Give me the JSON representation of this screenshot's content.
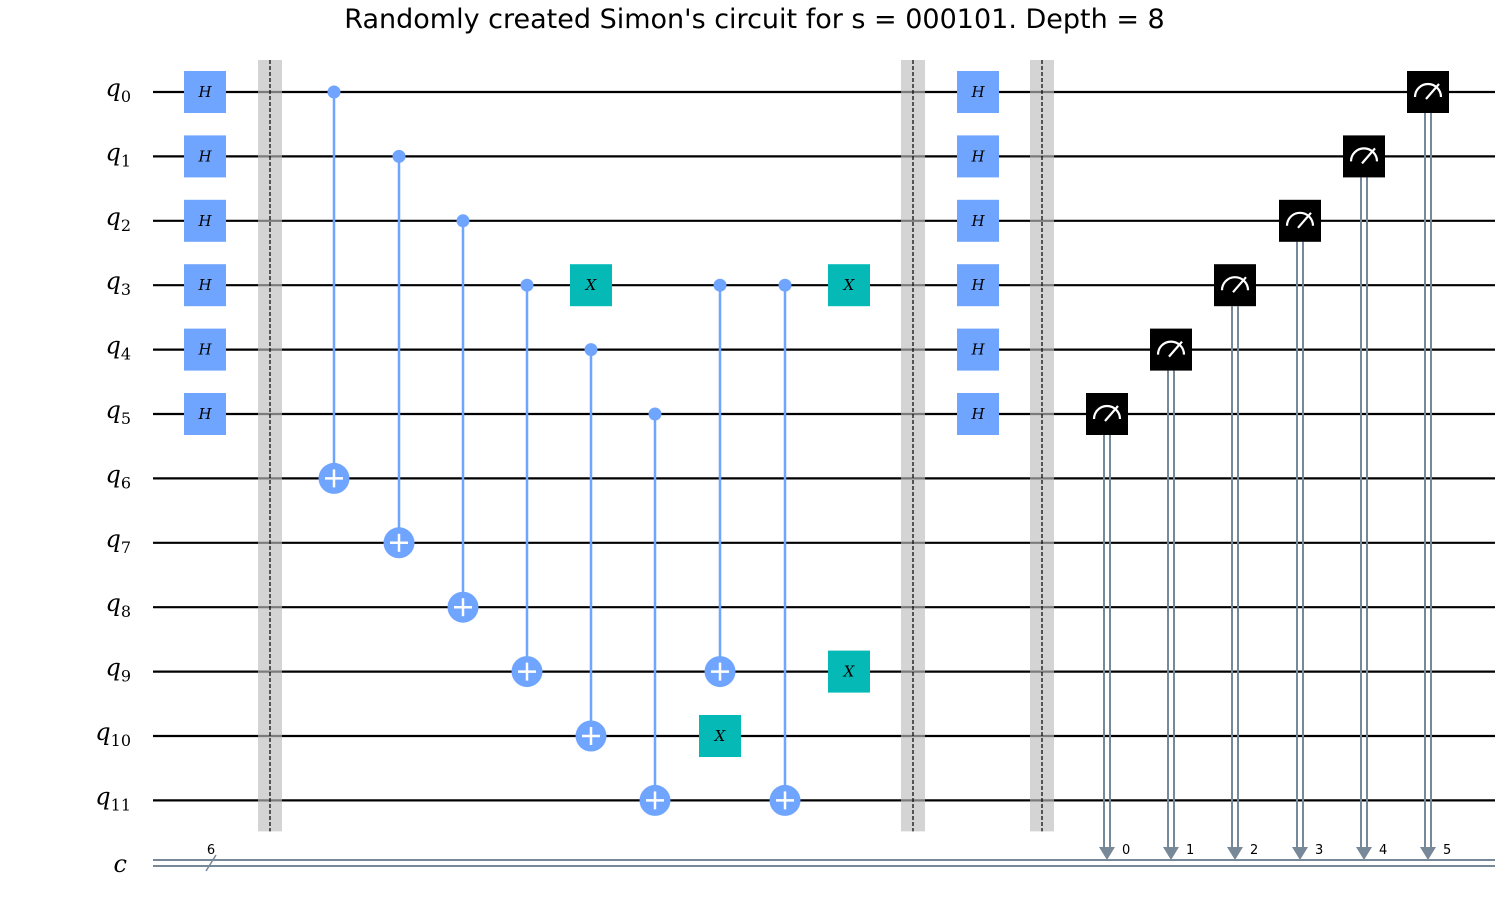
{
  "title": "Randomly created Simon's circuit for s = 000101. Depth = 8",
  "colors": {
    "wire": "#000000",
    "classical_wire": "#778899",
    "h_gate": "#6fa4ff",
    "x_gate": "#05bab6",
    "cx": "#6fa4ff",
    "barrier": "#bdbdbd",
    "measure": "#000000"
  },
  "qubits": [
    {
      "base": "q",
      "sub": "0"
    },
    {
      "base": "q",
      "sub": "1"
    },
    {
      "base": "q",
      "sub": "2"
    },
    {
      "base": "q",
      "sub": "3"
    },
    {
      "base": "q",
      "sub": "4"
    },
    {
      "base": "q",
      "sub": "5"
    },
    {
      "base": "q",
      "sub": "6"
    },
    {
      "base": "q",
      "sub": "7"
    },
    {
      "base": "q",
      "sub": "8"
    },
    {
      "base": "q",
      "sub": "9"
    },
    {
      "base": "q",
      "sub": "10"
    },
    {
      "base": "q",
      "sub": "11"
    }
  ],
  "classical_register": {
    "name": "c",
    "size_label": "6"
  },
  "operations": [
    {
      "type": "h",
      "targets": [
        0,
        1,
        2,
        3,
        4,
        5
      ],
      "label": "H"
    },
    {
      "type": "barrier"
    },
    {
      "type": "cx",
      "control": 0,
      "target": 6
    },
    {
      "type": "cx",
      "control": 1,
      "target": 7
    },
    {
      "type": "cx",
      "control": 2,
      "target": 8
    },
    {
      "type": "cx",
      "control": 3,
      "target": 9
    },
    {
      "type": "x",
      "target": 3,
      "label": "X"
    },
    {
      "type": "cx",
      "control": 4,
      "target": 10
    },
    {
      "type": "cx",
      "control": 5,
      "target": 11
    },
    {
      "type": "cx",
      "control": 3,
      "target": 9
    },
    {
      "type": "x",
      "target": 10,
      "label": "X"
    },
    {
      "type": "cx",
      "control": 3,
      "target": 11
    },
    {
      "type": "x",
      "target": 3,
      "label": "X"
    },
    {
      "type": "x",
      "target": 9,
      "label": "X"
    },
    {
      "type": "barrier"
    },
    {
      "type": "h",
      "targets": [
        0,
        1,
        2,
        3,
        4,
        5
      ],
      "label": "H"
    },
    {
      "type": "barrier"
    },
    {
      "type": "measure",
      "qubit": 5,
      "clbit_label": "0"
    },
    {
      "type": "measure",
      "qubit": 4,
      "clbit_label": "1"
    },
    {
      "type": "measure",
      "qubit": 3,
      "clbit_label": "2"
    },
    {
      "type": "measure",
      "qubit": 2,
      "clbit_label": "3"
    },
    {
      "type": "measure",
      "qubit": 1,
      "clbit_label": "4"
    },
    {
      "type": "measure",
      "qubit": 0,
      "clbit_label": "5"
    }
  ]
}
